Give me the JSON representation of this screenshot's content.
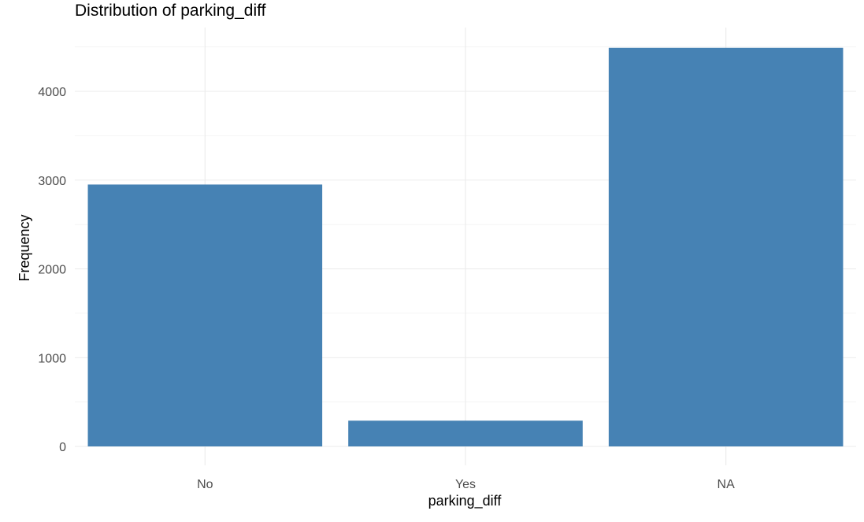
{
  "chart_data": {
    "type": "bar",
    "title": "Distribution of parking_diff",
    "xlabel": "parking_diff",
    "ylabel": "Frequency",
    "categories": [
      "No",
      "Yes",
      "NA"
    ],
    "values": [
      2950,
      290,
      4490
    ],
    "ylim": [
      0,
      4700
    ],
    "yticks": [
      0,
      1000,
      2000,
      3000,
      4000
    ],
    "ytick_labels": [
      "0",
      "1000",
      "2000",
      "3000",
      "4000"
    ],
    "bar_color": "#4682B4",
    "grid": true,
    "legend": "none"
  }
}
